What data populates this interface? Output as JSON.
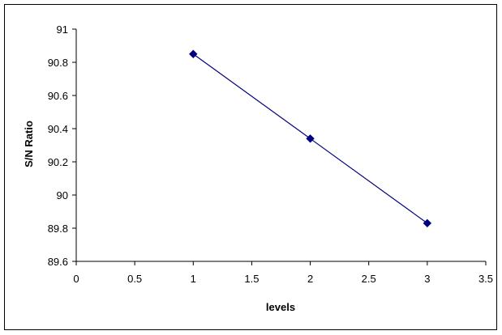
{
  "chart_data": {
    "type": "line",
    "title": "",
    "xlabel": "levels",
    "ylabel": "S/N Ratio",
    "xlim": [
      0,
      3.5
    ],
    "ylim": [
      89.6,
      91
    ],
    "x_ticks": [
      "0",
      "0.5",
      "1",
      "1.5",
      "2",
      "2.5",
      "3",
      "3.5"
    ],
    "y_ticks": [
      "89.6",
      "89.8",
      "90",
      "90.2",
      "90.4",
      "90.6",
      "90.8",
      "91"
    ],
    "grid": false,
    "legend": "none",
    "series": [
      {
        "color": "#000080",
        "marker": "diamond",
        "x": [
          1,
          2,
          3
        ],
        "y": [
          90.85,
          90.34,
          89.83
        ]
      }
    ]
  }
}
